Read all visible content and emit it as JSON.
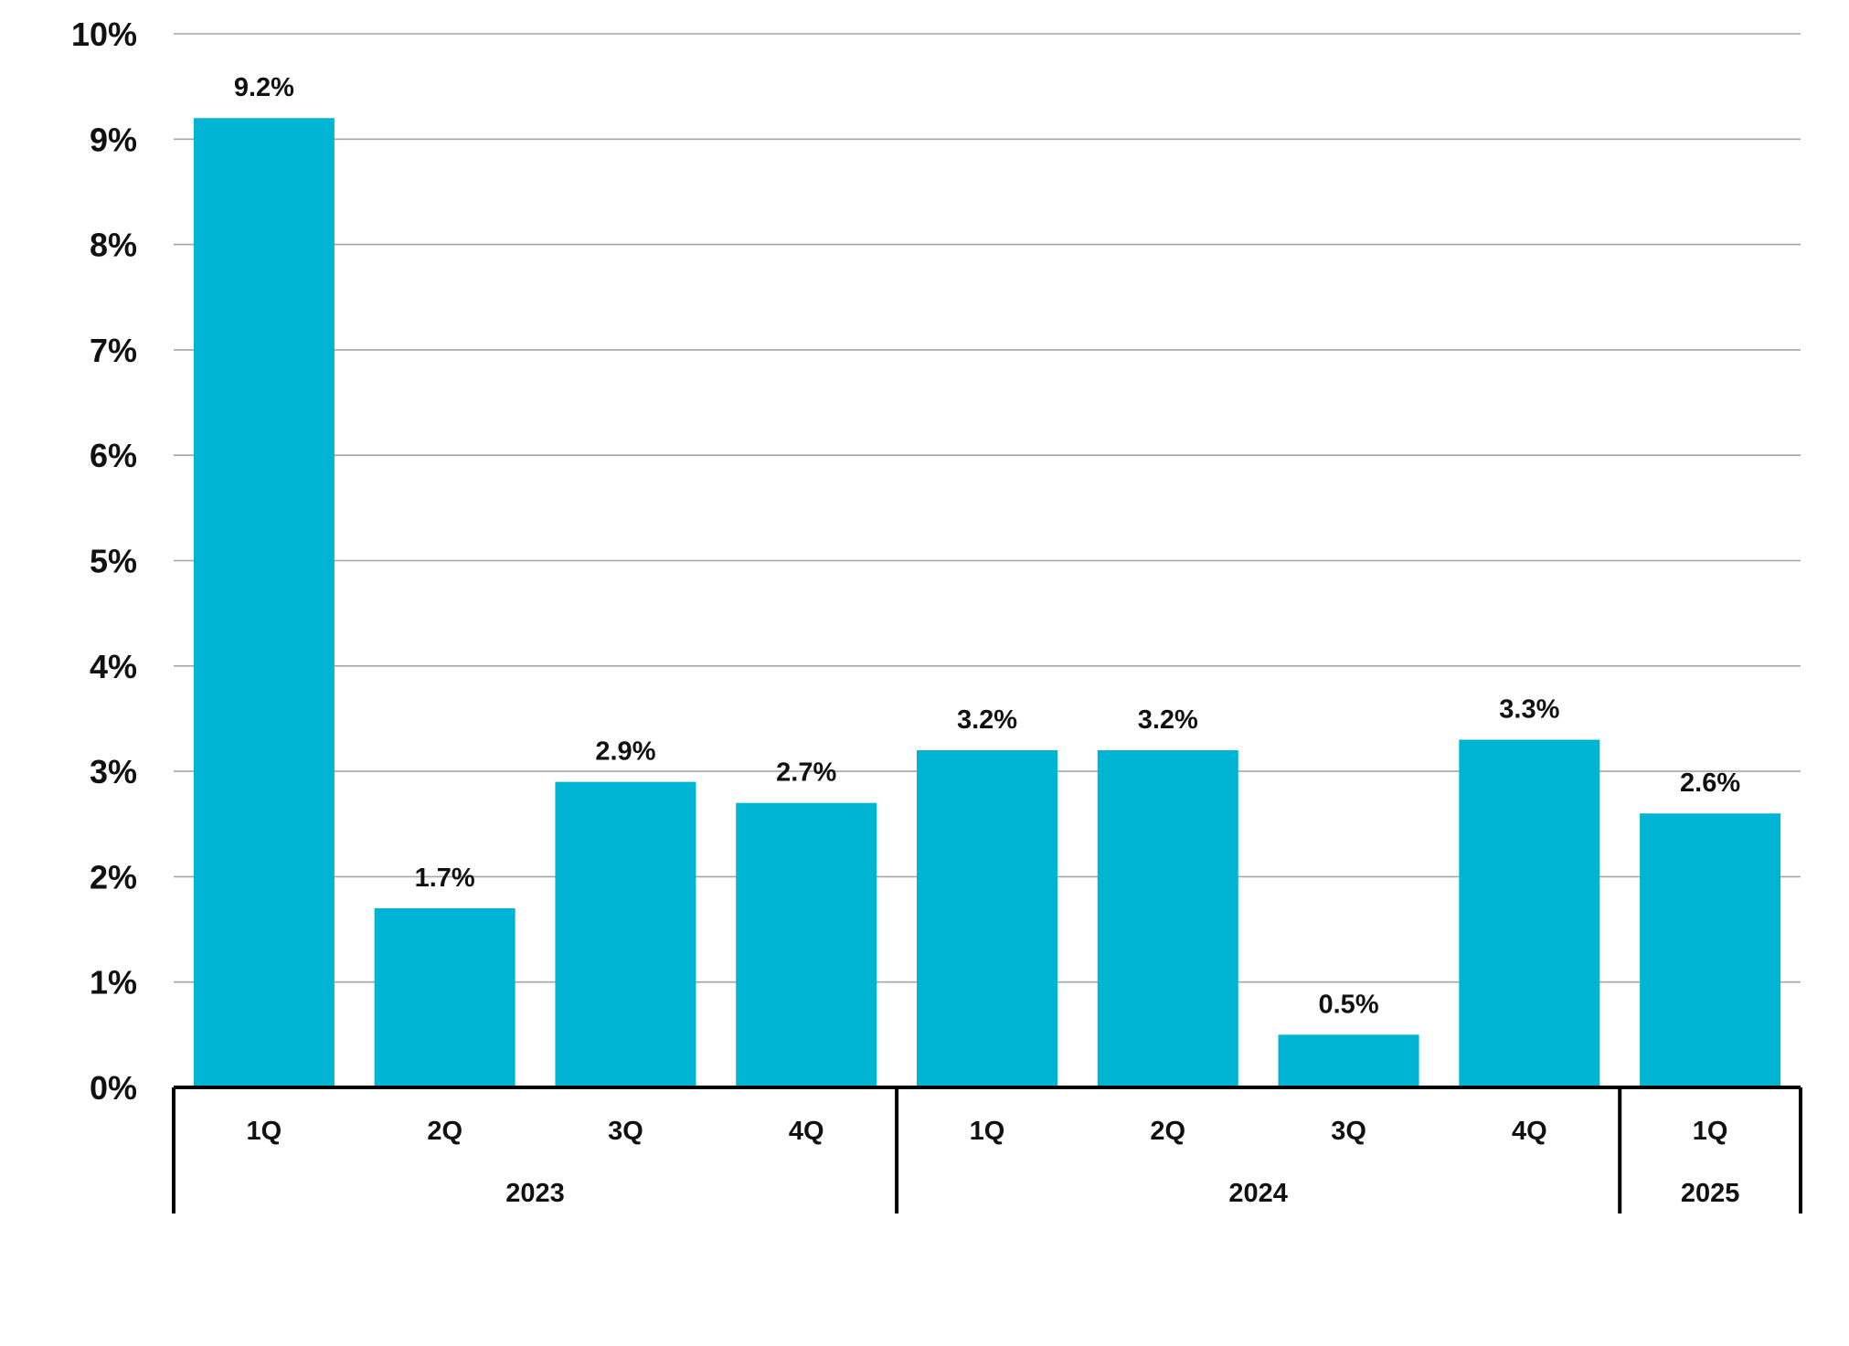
{
  "chart_data": {
    "type": "bar",
    "title": "",
    "xlabel": "",
    "ylabel": "",
    "ylim": [
      0,
      10
    ],
    "yticks": [
      "0%",
      "1%",
      "2%",
      "3%",
      "4%",
      "5%",
      "6%",
      "7%",
      "8%",
      "9%",
      "10%"
    ],
    "grid": true,
    "legend": "none",
    "bar_color": "#00B5D3",
    "categories": [
      "1Q",
      "2Q",
      "3Q",
      "4Q",
      "1Q",
      "2Q",
      "3Q",
      "4Q",
      "1Q"
    ],
    "values": [
      9.2,
      1.7,
      2.9,
      2.7,
      3.2,
      3.2,
      0.5,
      3.3,
      2.6
    ],
    "value_labels": [
      "9.2%",
      "1.7%",
      "2.9%",
      "2.7%",
      "3.2%",
      "3.2%",
      "0.5%",
      "3.3%",
      "2.6%"
    ],
    "groups": [
      {
        "label": "2023",
        "count": 4
      },
      {
        "label": "2024",
        "count": 4
      },
      {
        "label": "2025",
        "count": 1
      }
    ]
  }
}
